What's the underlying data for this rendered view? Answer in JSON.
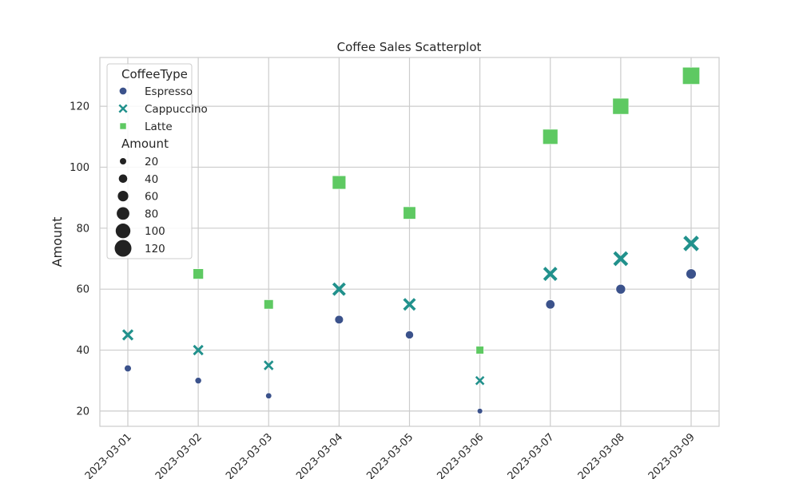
{
  "chart_data": {
    "type": "scatter",
    "title": "Coffee Sales Scatterplot",
    "xlabel": "",
    "ylabel": "Amount",
    "ylim": [
      15,
      136
    ],
    "yticks": [
      20,
      40,
      60,
      80,
      100,
      120
    ],
    "x": [
      "2023-03-01",
      "2023-03-02",
      "2023-03-03",
      "2023-03-04",
      "2023-03-05",
      "2023-03-06",
      "2023-03-07",
      "2023-03-08",
      "2023-03-09"
    ],
    "grid": true,
    "legend_position": "top-left",
    "hue_title": "CoffeeType",
    "size_title": "Amount",
    "size_legend_values": [
      20,
      40,
      60,
      80,
      100,
      120
    ],
    "series": [
      {
        "name": "Espresso",
        "marker": "circle",
        "color": "#3b528b",
        "values": [
          34,
          30,
          25,
          50,
          45,
          20,
          55,
          60,
          65
        ]
      },
      {
        "name": "Cappuccino",
        "marker": "x",
        "color": "#21918c",
        "values": [
          45,
          40,
          35,
          60,
          55,
          30,
          65,
          70,
          75
        ]
      },
      {
        "name": "Latte",
        "marker": "square",
        "color": "#5ec962",
        "values": [
          null,
          65,
          55,
          95,
          85,
          40,
          110,
          120,
          130
        ]
      }
    ]
  }
}
